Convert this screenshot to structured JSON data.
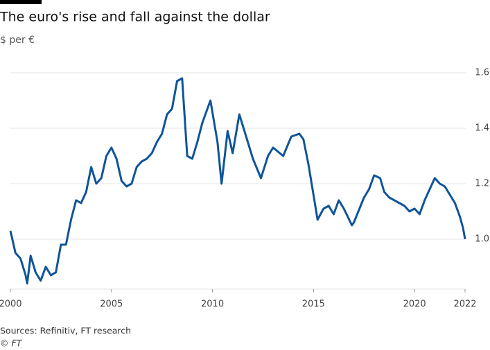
{
  "chart_data": {
    "type": "line",
    "title": "The euro's rise and fall against the dollar",
    "subtitle": "$ per €",
    "source": "Sources: Refinitiv, FT research",
    "credit": "© FT",
    "x": [
      2000.0,
      2000.25,
      2000.5,
      2000.75,
      2000.83,
      2001.0,
      2001.25,
      2001.5,
      2001.75,
      2002.0,
      2002.25,
      2002.5,
      2002.75,
      2003.0,
      2003.25,
      2003.5,
      2003.75,
      2004.0,
      2004.25,
      2004.5,
      2004.75,
      2005.0,
      2005.25,
      2005.5,
      2005.75,
      2006.0,
      2006.25,
      2006.5,
      2006.75,
      2007.0,
      2007.25,
      2007.5,
      2007.75,
      2008.0,
      2008.25,
      2008.5,
      2008.75,
      2009.0,
      2009.25,
      2009.5,
      2009.9,
      2010.25,
      2010.45,
      2010.75,
      2011.0,
      2011.33,
      2011.75,
      2012.0,
      2012.4,
      2012.75,
      2013.0,
      2013.5,
      2013.9,
      2014.3,
      2014.5,
      2014.75,
      2015.0,
      2015.2,
      2015.5,
      2015.75,
      2016.0,
      2016.25,
      2016.5,
      2016.9,
      2017.0,
      2017.5,
      2017.75,
      2018.0,
      2018.3,
      2018.5,
      2018.75,
      2019.0,
      2019.5,
      2019.75,
      2020.0,
      2020.25,
      2020.5,
      2020.75,
      2021.0,
      2021.25,
      2021.5,
      2021.75,
      2022.0,
      2022.25,
      2022.4,
      2022.5
    ],
    "series": [
      {
        "color": "#0f5499",
        "values": [
          1.03,
          0.95,
          0.93,
          0.87,
          0.84,
          0.94,
          0.88,
          0.85,
          0.9,
          0.87,
          0.88,
          0.98,
          0.98,
          1.07,
          1.14,
          1.13,
          1.17,
          1.26,
          1.2,
          1.22,
          1.3,
          1.33,
          1.29,
          1.21,
          1.19,
          1.2,
          1.26,
          1.28,
          1.29,
          1.31,
          1.35,
          1.38,
          1.45,
          1.47,
          1.57,
          1.58,
          1.3,
          1.29,
          1.35,
          1.42,
          1.5,
          1.35,
          1.2,
          1.39,
          1.31,
          1.45,
          1.35,
          1.29,
          1.22,
          1.3,
          1.33,
          1.3,
          1.37,
          1.38,
          1.36,
          1.27,
          1.16,
          1.07,
          1.11,
          1.12,
          1.09,
          1.14,
          1.11,
          1.05,
          1.06,
          1.15,
          1.18,
          1.23,
          1.22,
          1.17,
          1.15,
          1.14,
          1.12,
          1.1,
          1.11,
          1.09,
          1.14,
          1.18,
          1.22,
          1.2,
          1.19,
          1.16,
          1.13,
          1.08,
          1.04,
          1.0
        ]
      }
    ],
    "xlim": [
      2000,
      2022.5
    ],
    "xticks": [
      2000,
      2005,
      2010,
      2015,
      2020,
      {
        "value": 2022.5,
        "label": "2022"
      }
    ],
    "ylim": [
      0.82,
      1.63
    ],
    "yticks": [
      {
        "value": 1.0,
        "label": "1.0"
      },
      1.2,
      1.4,
      1.6
    ],
    "grid": true
  }
}
